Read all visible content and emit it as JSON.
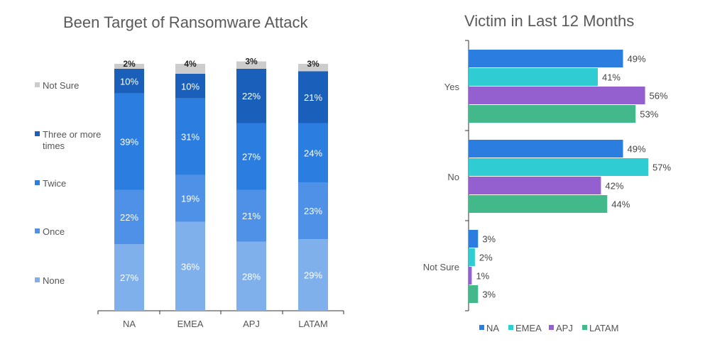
{
  "chart_data": [
    {
      "type": "bar",
      "orientation": "vertical",
      "stacked": true,
      "title": "Been Target of Ransomware Attack",
      "categories": [
        "NA",
        "EMEA",
        "APJ",
        "LATAM"
      ],
      "series": [
        {
          "name": "None",
          "values": [
            27,
            36,
            28,
            29
          ],
          "color": "#7fb0ec"
        },
        {
          "name": "Once",
          "values": [
            22,
            19,
            21,
            23
          ],
          "color": "#4e91e6"
        },
        {
          "name": "Twice",
          "values": [
            39,
            31,
            27,
            24
          ],
          "color": "#2b7de0"
        },
        {
          "name": "Three or more times",
          "values": [
            10,
            10,
            22,
            21
          ],
          "color": "#1a5fb9"
        },
        {
          "name": "Not Sure",
          "values": [
            2,
            4,
            3,
            3
          ],
          "color": "#cccccc"
        }
      ],
      "value_suffix": "%",
      "legend_position": "left",
      "ylim": [
        0,
        100
      ],
      "grid": false
    },
    {
      "type": "bar",
      "orientation": "horizontal",
      "title": "Victim in Last 12 Months",
      "categories": [
        "Yes",
        "No",
        "Not Sure"
      ],
      "series": [
        {
          "name": "NA",
          "values": [
            49,
            49,
            3
          ],
          "color": "#2b7de0"
        },
        {
          "name": "EMEA",
          "values": [
            41,
            57,
            2
          ],
          "color": "#2fcdd3"
        },
        {
          "name": "APJ",
          "values": [
            56,
            42,
            1
          ],
          "color": "#9460cf"
        },
        {
          "name": "LATAM",
          "values": [
            53,
            44,
            3
          ],
          "color": "#43b98b"
        }
      ],
      "value_suffix": "%",
      "legend_position": "bottom",
      "xlim": [
        0,
        60
      ],
      "grid": false
    }
  ]
}
